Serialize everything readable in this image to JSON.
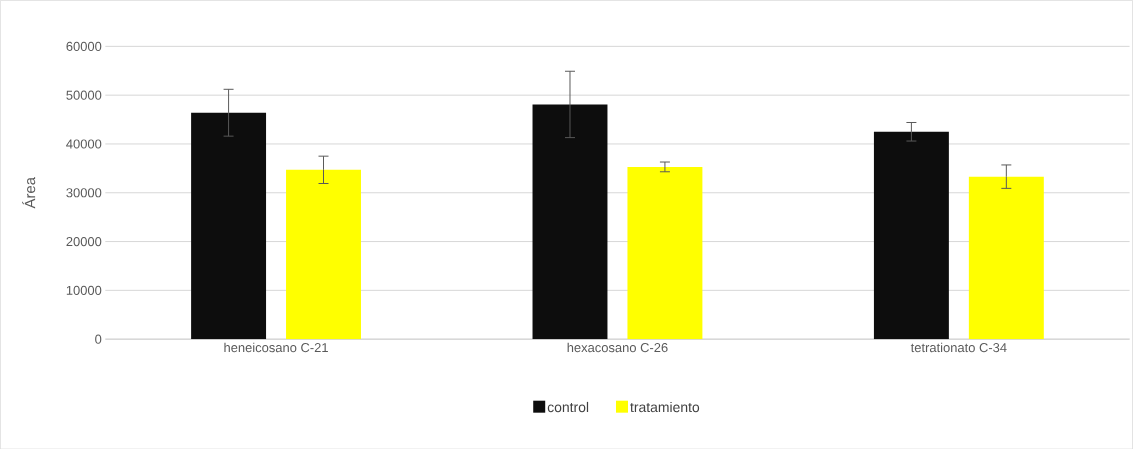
{
  "chart_data": {
    "type": "bar",
    "ylabel": "Área",
    "categories": [
      "heneicosano C-21",
      "hexacosano C-26",
      "tetrationato C-34"
    ],
    "series": [
      {
        "name": "control",
        "color": "#0d0d0d",
        "values": [
          46400,
          48100,
          42500
        ],
        "errors": [
          4800,
          6800,
          1900
        ]
      },
      {
        "name": "tratamiento",
        "color": "#ffff00",
        "values": [
          34700,
          35300,
          33300
        ],
        "errors": [
          2800,
          1000,
          2400
        ]
      }
    ],
    "ylim": [
      0,
      60000
    ],
    "yticks": [
      0,
      10000,
      20000,
      30000,
      40000,
      50000,
      60000
    ],
    "grid": "y",
    "legend": "bottom"
  }
}
